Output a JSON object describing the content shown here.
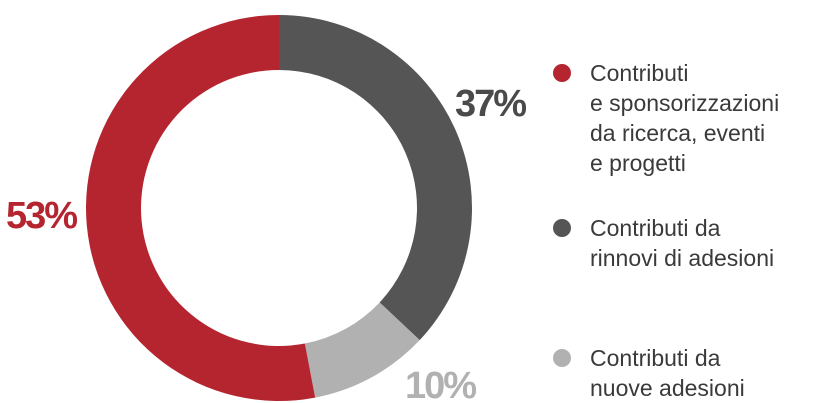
{
  "chart_data": {
    "type": "pie",
    "donut": true,
    "title": "",
    "legend_position": "right",
    "slices": [
      {
        "label_lines": [
          "Contributi",
          "e sponsorizzazioni",
          "da ricerca, eventi",
          "e progetti"
        ],
        "value": 53,
        "value_label": "53%",
        "color": "#b5252f"
      },
      {
        "label_lines": [
          "Contributi da",
          "rinnovi di adesioni"
        ],
        "value": 37,
        "value_label": "37%",
        "color": "#555555"
      },
      {
        "label_lines": [
          "Contributi da",
          "nuove adesioni"
        ],
        "value": 10,
        "value_label": "10%",
        "color": "#b1b1b1"
      }
    ]
  }
}
